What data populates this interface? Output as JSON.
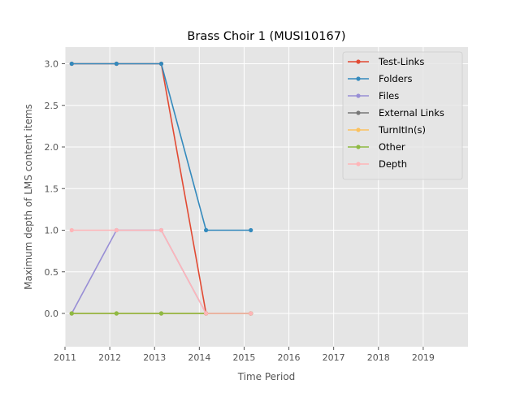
{
  "chart_data": {
    "type": "line",
    "title": "Brass Choir 1 (MUSI10167)",
    "xlabel": "Time Period",
    "ylabel": "Maximum depth of LMS content items",
    "xlim": [
      2011,
      2020
    ],
    "ylim": [
      -0.4,
      3.2
    ],
    "x_ticks": [
      "2011",
      "2012",
      "2013",
      "2014",
      "2015",
      "2016",
      "2017",
      "2018",
      "2019"
    ],
    "y_ticks": [
      "0.0",
      "0.5",
      "1.0",
      "1.5",
      "2.0",
      "2.5",
      "3.0"
    ],
    "grid": true,
    "legend_position": "top-right",
    "x": [
      2011.15,
      2012.15,
      2013.15,
      2014.15,
      2015.15
    ],
    "series": [
      {
        "name": "Test-Links",
        "color": "#E24A33",
        "values": [
          3.0,
          3.0,
          3.0,
          0.0,
          0.0
        ]
      },
      {
        "name": "Folders",
        "color": "#348ABD",
        "values": [
          3.0,
          3.0,
          3.0,
          1.0,
          1.0
        ]
      },
      {
        "name": "Files",
        "color": "#988ED5",
        "values": [
          0.0,
          1.0,
          1.0,
          0.0,
          0.0
        ]
      },
      {
        "name": "External Links",
        "color": "#777777",
        "values": [
          0.0,
          0.0,
          0.0,
          0.0,
          0.0
        ]
      },
      {
        "name": "TurnItIn(s)",
        "color": "#FBC15E",
        "values": [
          0.0,
          0.0,
          0.0,
          0.0,
          0.0
        ]
      },
      {
        "name": "Other",
        "color": "#8EBA42",
        "values": [
          0.0,
          0.0,
          0.0,
          0.0,
          0.0
        ]
      },
      {
        "name": "Depth",
        "color": "#FFB5B8",
        "values": [
          1.0,
          1.0,
          1.0,
          0.0,
          0.0
        ]
      }
    ]
  }
}
